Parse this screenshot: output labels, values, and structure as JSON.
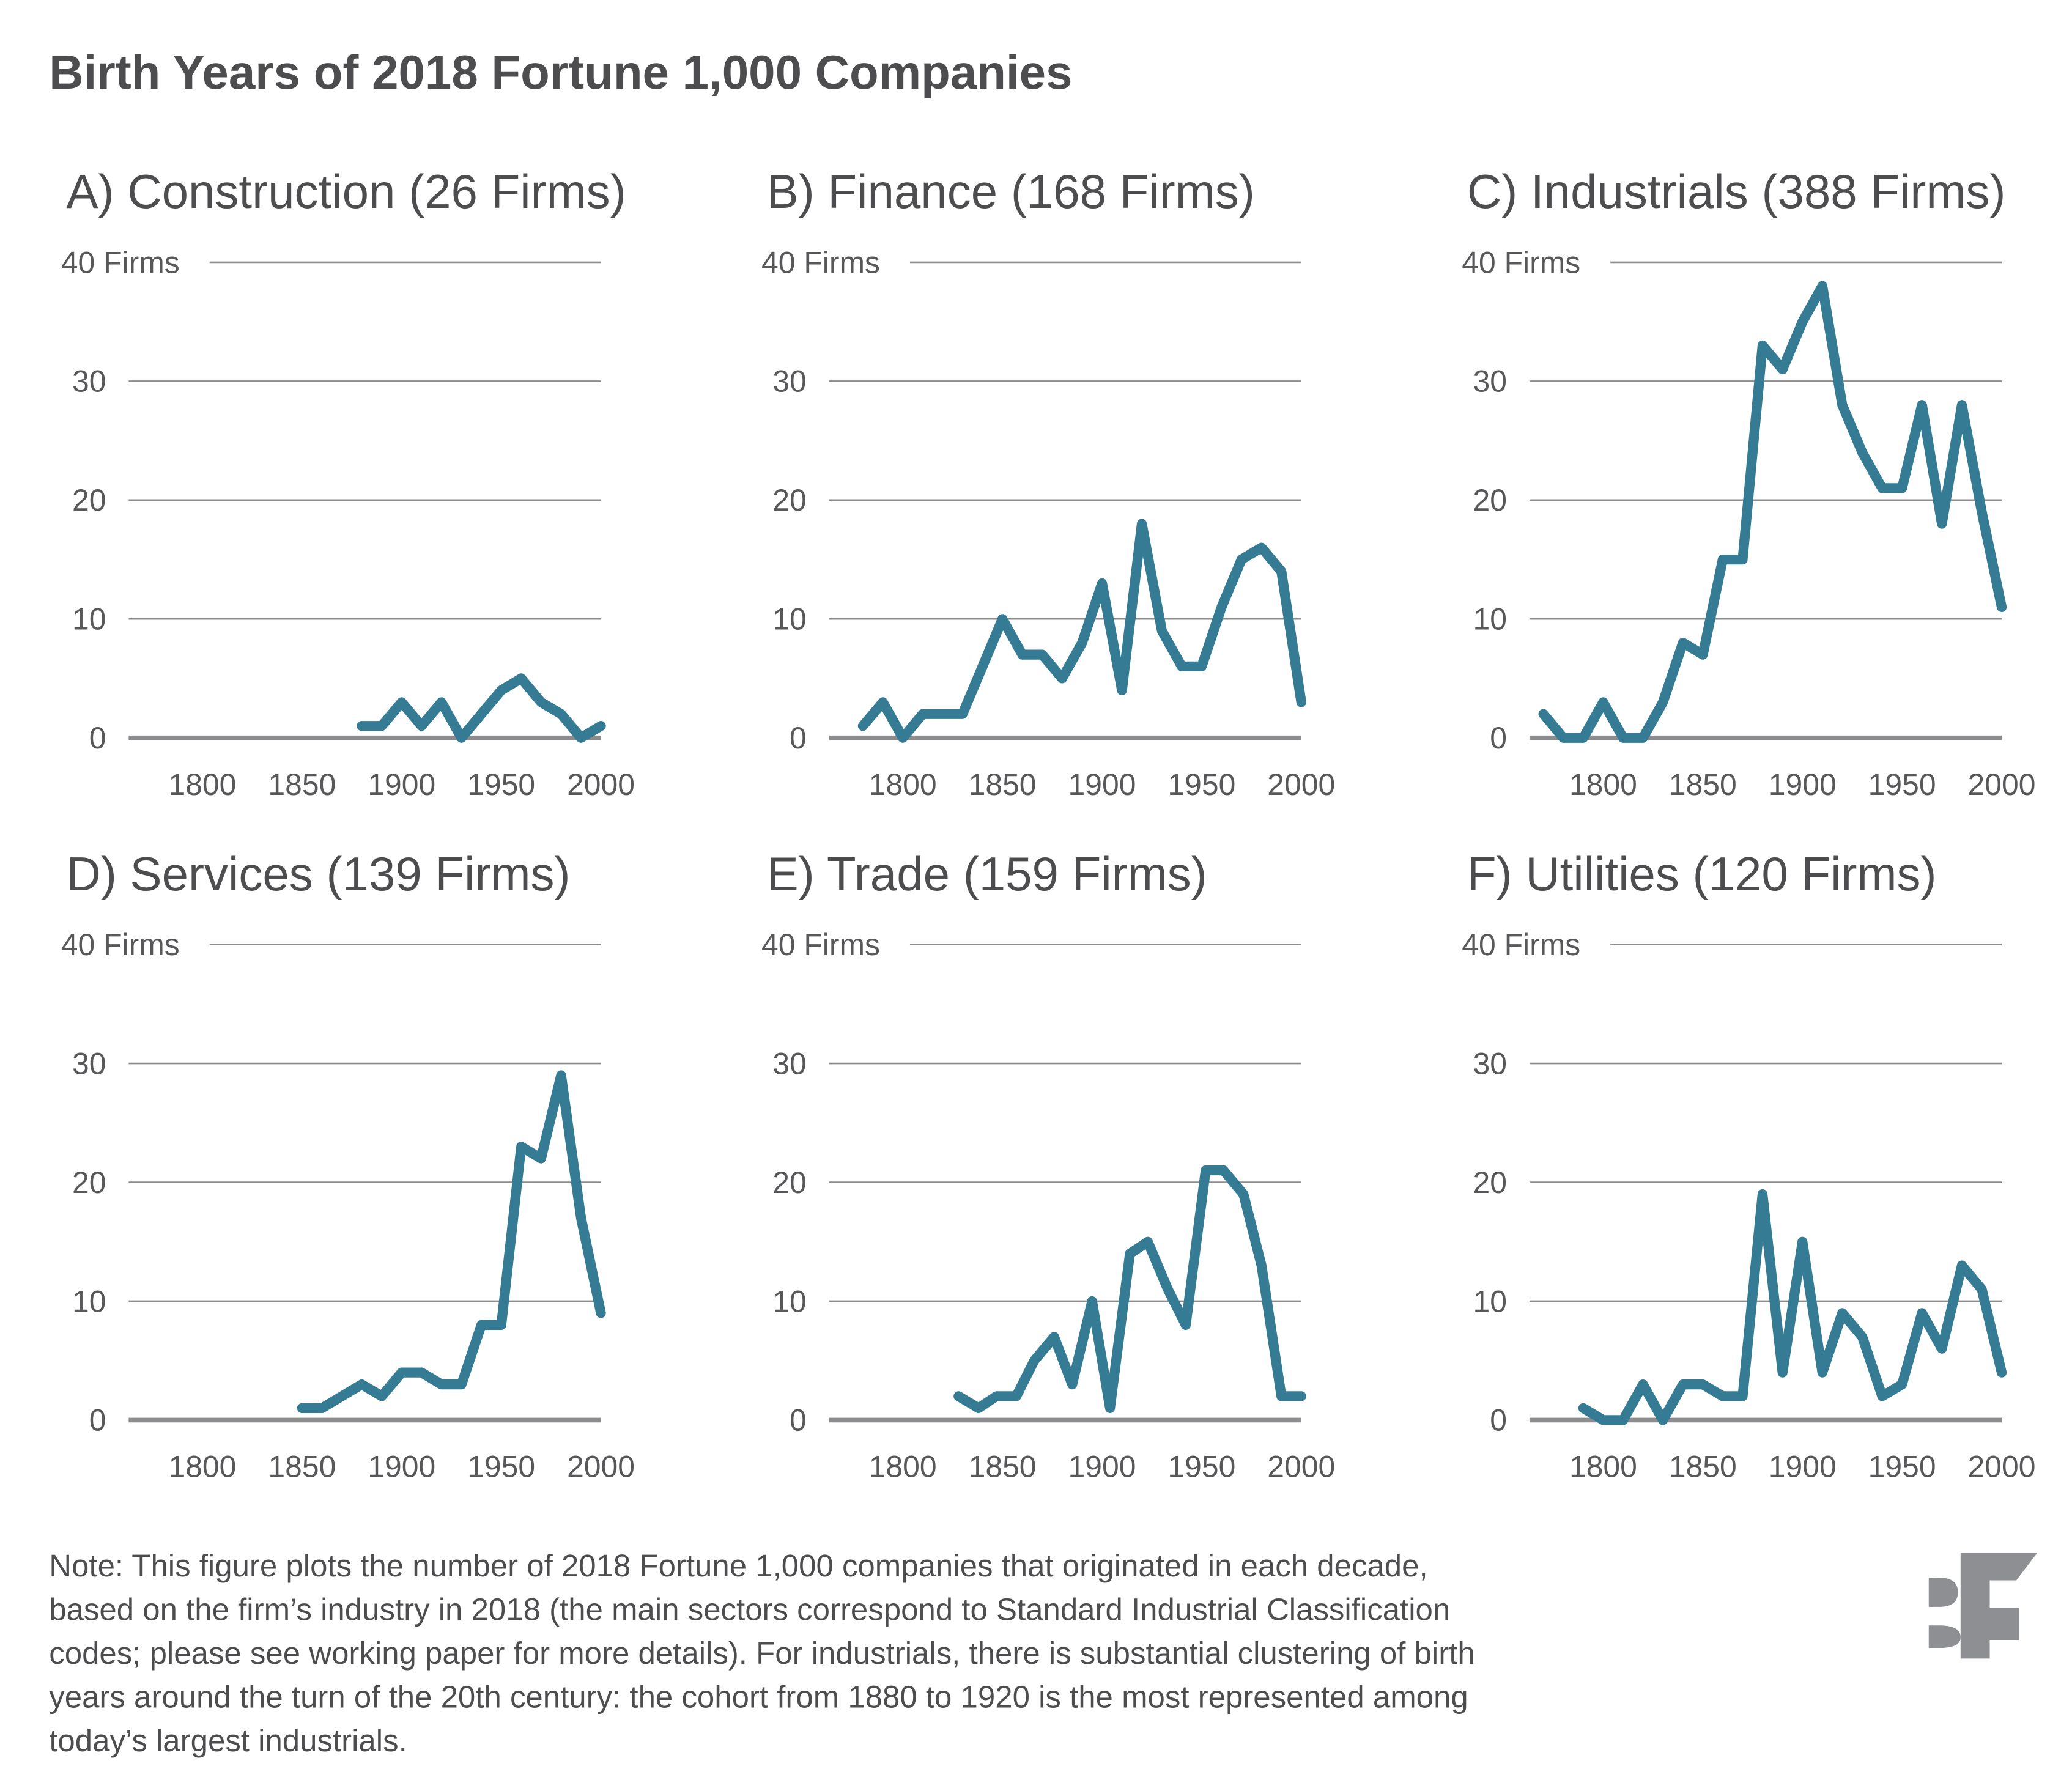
{
  "title": "Birth Years of 2018 Fortune 1,000 Companies",
  "note_lines": [
    "Note: This figure plots the number of 2018 Fortune 1,000 companies that originated in each decade,",
    "based on the firm’s industry in 2018 (the main sectors correspond to Standard Industrial Classification",
    "codes; please see working paper for more details). For industrials, there is substantial clustering of birth",
    "years around the turn of the 20th century: the cohort from 1880 to 1920 is the most represented among",
    "today’s largest industrials."
  ],
  "logo": {
    "text": "BF",
    "color": "#8e8f92"
  },
  "colors": {
    "line": "#367b94",
    "grid": "#8c8c8e",
    "text": "#4d4d4f"
  },
  "chart_data": [
    {
      "type": "line",
      "title": "A) Construction (26 Firms)",
      "ylabel": "Firms",
      "y_ticks": [
        0,
        10,
        20,
        30,
        40
      ],
      "y_tick_labels": [
        "0",
        "10",
        "20",
        "30",
        "40 Firms"
      ],
      "x_ticks": [
        1800,
        1850,
        1900,
        1950,
        2000
      ],
      "x_tick_labels": [
        "1800",
        "1850",
        "1900",
        "1950",
        "2000"
      ],
      "xlim": [
        1763,
        2000
      ],
      "ylim": [
        0,
        40
      ],
      "grid": true,
      "x": [
        1880,
        1890,
        1900,
        1910,
        1920,
        1930,
        1940,
        1950,
        1960,
        1970,
        1980,
        1990,
        2000
      ],
      "values": [
        1,
        1,
        3,
        1,
        3,
        0,
        2,
        4,
        5,
        3,
        2,
        0,
        1
      ]
    },
    {
      "type": "line",
      "title": "B) Finance (168 Firms)",
      "ylabel": "Firms",
      "y_ticks": [
        0,
        10,
        20,
        30,
        40
      ],
      "y_tick_labels": [
        "0",
        "10",
        "20",
        "30",
        "40 Firms"
      ],
      "x_ticks": [
        1800,
        1850,
        1900,
        1950,
        2000
      ],
      "x_tick_labels": [
        "1800",
        "1850",
        "1900",
        "1950",
        "2000"
      ],
      "xlim": [
        1763,
        2000
      ],
      "ylim": [
        0,
        40
      ],
      "grid": true,
      "x": [
        1780,
        1790,
        1800,
        1810,
        1820,
        1830,
        1840,
        1850,
        1860,
        1870,
        1880,
        1890,
        1900,
        1910,
        1920,
        1930,
        1940,
        1950,
        1960,
        1970,
        1980,
        1990,
        2000
      ],
      "values": [
        1,
        3,
        0,
        2,
        2,
        2,
        6,
        10,
        7,
        7,
        5,
        8,
        13,
        4,
        18,
        9,
        6,
        6,
        11,
        15,
        16,
        14,
        3
      ]
    },
    {
      "type": "line",
      "title": "C) Industrials (388 Firms)",
      "ylabel": "Firms",
      "y_ticks": [
        0,
        10,
        20,
        30,
        40
      ],
      "y_tick_labels": [
        "0",
        "10",
        "20",
        "30",
        "40 Firms"
      ],
      "x_ticks": [
        1800,
        1850,
        1900,
        1950,
        2000
      ],
      "x_tick_labels": [
        "1800",
        "1850",
        "1900",
        "1950",
        "2000"
      ],
      "xlim": [
        1763,
        2000
      ],
      "ylim": [
        0,
        40
      ],
      "grid": true,
      "x": [
        1770,
        1780,
        1790,
        1800,
        1810,
        1820,
        1830,
        1840,
        1850,
        1860,
        1870,
        1880,
        1890,
        1900,
        1910,
        1920,
        1930,
        1940,
        1950,
        1960,
        1970,
        1980,
        1990,
        2000
      ],
      "values": [
        2,
        0,
        0,
        3,
        0,
        0,
        3,
        8,
        7,
        15,
        15,
        33,
        31,
        35,
        38,
        28,
        24,
        21,
        21,
        28,
        18,
        28,
        19,
        11
      ]
    },
    {
      "type": "line",
      "title": "D) Services (139 Firms)",
      "ylabel": "Firms",
      "y_ticks": [
        0,
        10,
        20,
        30,
        40
      ],
      "y_tick_labels": [
        "0",
        "10",
        "20",
        "30",
        "40 Firms"
      ],
      "x_ticks": [
        1800,
        1850,
        1900,
        1950,
        2000
      ],
      "x_tick_labels": [
        "1800",
        "1850",
        "1900",
        "1950",
        "2000"
      ],
      "xlim": [
        1763,
        2000
      ],
      "ylim": [
        0,
        40
      ],
      "grid": true,
      "x": [
        1850,
        1860,
        1870,
        1880,
        1890,
        1900,
        1910,
        1920,
        1930,
        1940,
        1950,
        1960,
        1970,
        1980,
        1990,
        2000
      ],
      "values": [
        1,
        1,
        2,
        3,
        2,
        4,
        4,
        3,
        3,
        8,
        8,
        23,
        22,
        29,
        17,
        9
      ]
    },
    {
      "type": "line",
      "title": "E) Trade (159 Firms)",
      "ylabel": "Firms",
      "y_ticks": [
        0,
        10,
        20,
        30,
        40
      ],
      "y_tick_labels": [
        "0",
        "10",
        "20",
        "30",
        "40 Firms"
      ],
      "x_ticks": [
        1800,
        1850,
        1900,
        1950,
        2000
      ],
      "x_tick_labels": [
        "1800",
        "1850",
        "1900",
        "1950",
        "2000"
      ],
      "xlim": [
        1763,
        2000
      ],
      "ylim": [
        0,
        40
      ],
      "grid": true,
      "x": [
        1828,
        1838,
        1847,
        1857,
        1866,
        1876,
        1885,
        1895,
        1904,
        1914,
        1923,
        1933,
        1942,
        1952,
        1961,
        1971,
        1980,
        1990,
        2000
      ],
      "values": [
        2,
        1,
        2,
        2,
        5,
        7,
        3,
        10,
        1,
        14,
        15,
        11,
        8,
        21,
        21,
        19,
        13,
        2,
        2
      ]
    },
    {
      "type": "line",
      "title": "F) Utilities (120 Firms)",
      "ylabel": "Firms",
      "y_ticks": [
        0,
        10,
        20,
        30,
        40
      ],
      "y_tick_labels": [
        "0",
        "10",
        "20",
        "30",
        "40 Firms"
      ],
      "x_ticks": [
        1800,
        1850,
        1900,
        1950,
        2000
      ],
      "x_tick_labels": [
        "1800",
        "1850",
        "1900",
        "1950",
        "2000"
      ],
      "xlim": [
        1763,
        2000
      ],
      "ylim": [
        0,
        40
      ],
      "grid": true,
      "x": [
        1790,
        1800,
        1810,
        1820,
        1830,
        1840,
        1850,
        1860,
        1870,
        1880,
        1890,
        1900,
        1910,
        1920,
        1930,
        1940,
        1950,
        1960,
        1970,
        1980,
        1990,
        2000
      ],
      "values": [
        1,
        0,
        0,
        3,
        0,
        3,
        3,
        2,
        2,
        19,
        4,
        15,
        4,
        9,
        7,
        2,
        3,
        9,
        6,
        13,
        11,
        4
      ]
    }
  ]
}
